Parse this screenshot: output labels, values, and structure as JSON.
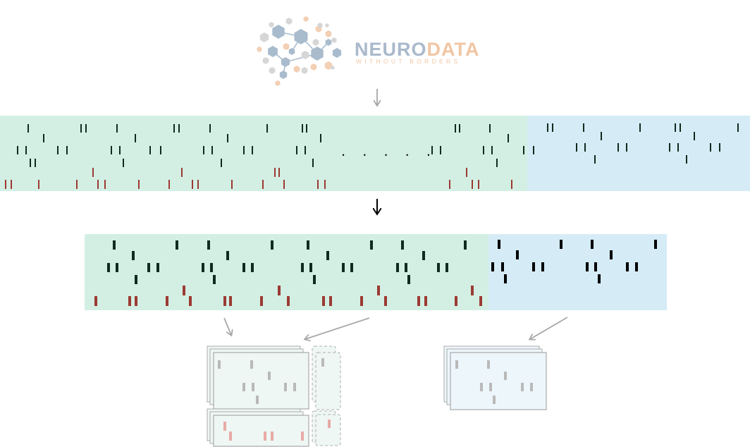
{
  "logo": {
    "brand_part1": "NEURO",
    "brand_part2": "DATA",
    "tagline": "WITHOUT BORDERS",
    "color_part1": "#aab9cc",
    "color_part2": "#f0c6a4",
    "node_blue": "#a9bccd",
    "node_orange": "#f3cfb3",
    "node_grey": "#d6d6d6"
  },
  "colors": {
    "train_bg": "#d3efe3",
    "test_bg": "#d5ecf6",
    "neuron_tick": "#0f2a1e",
    "behavior_tick": "#9b3a33",
    "arrow_grey": "#a8a8a8",
    "arrow_black": "#000000",
    "card_green": "#eef7f3",
    "card_blue": "#edf6fa",
    "card_border": "#9a9a9a",
    "faded_neuron": "#b9b9b9",
    "faded_behavior": "#e7aaa6"
  },
  "icons": {
    "down_arrow": "down-arrow-icon",
    "diagonal_arrow": "diagonal-arrow-icon"
  },
  "diagram": {
    "ellipsis": ". . . . ."
  }
}
